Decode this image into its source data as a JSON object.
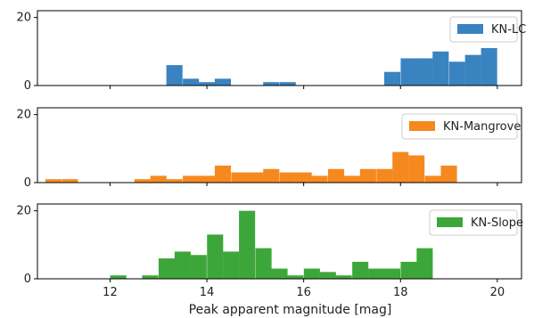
{
  "chart_data": {
    "type": "bar",
    "xlabel": "Peak apparent magnitude [mag]",
    "xlim": [
      10.5,
      20.5
    ],
    "x_ticks": [
      12,
      14,
      16,
      18,
      20
    ],
    "x_tick_labels": [
      "12",
      "14",
      "16",
      "18",
      "20"
    ],
    "bin_width": 0.333,
    "panels": [
      {
        "name": "KN-LC",
        "color": "#3a83c1",
        "ylim": [
          0,
          22
        ],
        "y_ticks": [
          0,
          20
        ],
        "y_tick_labels": [
          "0",
          "20"
        ],
        "legend_position": "top-right",
        "bins": [
          {
            "x": 13.33,
            "value": 6
          },
          {
            "x": 13.67,
            "value": 2
          },
          {
            "x": 14.0,
            "value": 1
          },
          {
            "x": 14.33,
            "value": 2
          },
          {
            "x": 15.33,
            "value": 1
          },
          {
            "x": 15.67,
            "value": 1
          },
          {
            "x": 17.83,
            "value": 4
          },
          {
            "x": 18.17,
            "value": 8
          },
          {
            "x": 18.5,
            "value": 8
          },
          {
            "x": 18.83,
            "value": 10
          },
          {
            "x": 19.17,
            "value": 7
          },
          {
            "x": 19.5,
            "value": 9
          },
          {
            "x": 19.83,
            "value": 11
          }
        ]
      },
      {
        "name": "KN-Mangrove",
        "color": "#f5891f",
        "ylim": [
          0,
          22
        ],
        "y_ticks": [
          0,
          20
        ],
        "y_tick_labels": [
          "0",
          "20"
        ],
        "legend_position": "top-right",
        "bins": [
          {
            "x": 10.83,
            "value": 1
          },
          {
            "x": 11.17,
            "value": 1
          },
          {
            "x": 12.67,
            "value": 1
          },
          {
            "x": 13.0,
            "value": 2
          },
          {
            "x": 13.33,
            "value": 1
          },
          {
            "x": 13.67,
            "value": 2
          },
          {
            "x": 14.0,
            "value": 2
          },
          {
            "x": 14.33,
            "value": 5
          },
          {
            "x": 14.67,
            "value": 3
          },
          {
            "x": 15.0,
            "value": 3
          },
          {
            "x": 15.33,
            "value": 4
          },
          {
            "x": 15.67,
            "value": 3
          },
          {
            "x": 16.0,
            "value": 3
          },
          {
            "x": 16.33,
            "value": 2
          },
          {
            "x": 16.67,
            "value": 4
          },
          {
            "x": 17.0,
            "value": 2
          },
          {
            "x": 17.33,
            "value": 4
          },
          {
            "x": 17.67,
            "value": 4
          },
          {
            "x": 18.0,
            "value": 9
          },
          {
            "x": 18.33,
            "value": 8
          },
          {
            "x": 18.67,
            "value": 2
          },
          {
            "x": 19.0,
            "value": 5
          }
        ]
      },
      {
        "name": "KN-Slope",
        "color": "#3da63a",
        "ylim": [
          0,
          22
        ],
        "y_ticks": [
          0,
          20
        ],
        "y_tick_labels": [
          "0",
          "20"
        ],
        "legend_position": "top-right",
        "bins": [
          {
            "x": 12.17,
            "value": 1
          },
          {
            "x": 12.83,
            "value": 1
          },
          {
            "x": 13.17,
            "value": 6
          },
          {
            "x": 13.5,
            "value": 8
          },
          {
            "x": 13.83,
            "value": 7
          },
          {
            "x": 14.17,
            "value": 13
          },
          {
            "x": 14.5,
            "value": 8
          },
          {
            "x": 14.83,
            "value": 20
          },
          {
            "x": 15.17,
            "value": 9
          },
          {
            "x": 15.5,
            "value": 3
          },
          {
            "x": 15.83,
            "value": 1
          },
          {
            "x": 16.17,
            "value": 3
          },
          {
            "x": 16.5,
            "value": 2
          },
          {
            "x": 16.83,
            "value": 1
          },
          {
            "x": 17.17,
            "value": 5
          },
          {
            "x": 17.5,
            "value": 3
          },
          {
            "x": 17.83,
            "value": 3
          },
          {
            "x": 18.17,
            "value": 5
          },
          {
            "x": 18.5,
            "value": 9
          }
        ]
      }
    ]
  }
}
